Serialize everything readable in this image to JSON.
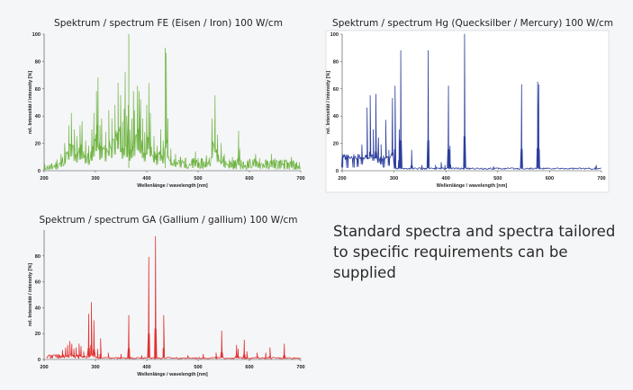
{
  "caption": "Standard spectra and spectra tailored to specific requirements can be supplied",
  "chart_data": [
    {
      "type": "line",
      "title": "Spektrum / spectrum FE (Eisen / Iron) 100 W/cm",
      "xlabel": "Wellenlänge / wavelength [nm]",
      "ylabel": "rel. Intensität / intensity [%]",
      "xlim": [
        200,
        700
      ],
      "ylim": [
        0,
        100
      ],
      "xticks": [
        "200",
        "300",
        "400",
        "500",
        "600",
        "700"
      ],
      "yticks": [
        "0",
        "20",
        "40",
        "60",
        "80",
        "100"
      ],
      "color": "#6db33f",
      "grid": false,
      "peaks": [
        {
          "x": 200,
          "y": 1
        },
        {
          "x": 215,
          "y": 5
        },
        {
          "x": 225,
          "y": 8
        },
        {
          "x": 233,
          "y": 12
        },
        {
          "x": 240,
          "y": 20
        },
        {
          "x": 248,
          "y": 33
        },
        {
          "x": 253,
          "y": 42
        },
        {
          "x": 259,
          "y": 30
        },
        {
          "x": 264,
          "y": 25
        },
        {
          "x": 270,
          "y": 33
        },
        {
          "x": 274,
          "y": 36
        },
        {
          "x": 281,
          "y": 22
        },
        {
          "x": 287,
          "y": 18
        },
        {
          "x": 293,
          "y": 30
        },
        {
          "x": 297,
          "y": 42
        },
        {
          "x": 302,
          "y": 58
        },
        {
          "x": 305,
          "y": 68
        },
        {
          "x": 309,
          "y": 33
        },
        {
          "x": 312,
          "y": 38
        },
        {
          "x": 320,
          "y": 28
        },
        {
          "x": 326,
          "y": 44
        },
        {
          "x": 332,
          "y": 38
        },
        {
          "x": 338,
          "y": 48
        },
        {
          "x": 344,
          "y": 64
        },
        {
          "x": 349,
          "y": 55
        },
        {
          "x": 353,
          "y": 36
        },
        {
          "x": 356,
          "y": 45
        },
        {
          "x": 358,
          "y": 72
        },
        {
          "x": 361,
          "y": 40
        },
        {
          "x": 364,
          "y": 48
        },
        {
          "x": 367,
          "y": 30
        },
        {
          "x": 371,
          "y": 38
        },
        {
          "x": 374,
          "y": 58
        },
        {
          "x": 376,
          "y": 44
        },
        {
          "x": 382,
          "y": 62
        },
        {
          "x": 385,
          "y": 58
        },
        {
          "x": 388,
          "y": 52
        },
        {
          "x": 392,
          "y": 38
        },
        {
          "x": 396,
          "y": 28
        },
        {
          "x": 400,
          "y": 48
        },
        {
          "x": 404,
          "y": 64
        },
        {
          "x": 407,
          "y": 42
        },
        {
          "x": 414,
          "y": 25
        },
        {
          "x": 420,
          "y": 18
        },
        {
          "x": 427,
          "y": 30
        },
        {
          "x": 432,
          "y": 22
        },
        {
          "x": 438,
          "y": 86
        },
        {
          "x": 441,
          "y": 38
        },
        {
          "x": 447,
          "y": 16
        },
        {
          "x": 456,
          "y": 12
        },
        {
          "x": 466,
          "y": 10
        },
        {
          "x": 475,
          "y": 9
        },
        {
          "x": 490,
          "y": 9
        },
        {
          "x": 495,
          "y": 14
        },
        {
          "x": 500,
          "y": 9
        },
        {
          "x": 508,
          "y": 8
        },
        {
          "x": 516,
          "y": 11
        },
        {
          "x": 527,
          "y": 38
        },
        {
          "x": 533,
          "y": 55
        },
        {
          "x": 538,
          "y": 26
        },
        {
          "x": 545,
          "y": 20
        },
        {
          "x": 551,
          "y": 12
        },
        {
          "x": 561,
          "y": 8
        },
        {
          "x": 567,
          "y": 10
        },
        {
          "x": 571,
          "y": 7
        },
        {
          "x": 579,
          "y": 29
        },
        {
          "x": 581,
          "y": 16
        },
        {
          "x": 588,
          "y": 6
        },
        {
          "x": 598,
          "y": 8
        },
        {
          "x": 612,
          "y": 12
        },
        {
          "x": 620,
          "y": 9
        },
        {
          "x": 634,
          "y": 7
        },
        {
          "x": 643,
          "y": 12
        },
        {
          "x": 650,
          "y": 9
        },
        {
          "x": 660,
          "y": 7
        },
        {
          "x": 668,
          "y": 8
        },
        {
          "x": 674,
          "y": 6
        },
        {
          "x": 682,
          "y": 10
        },
        {
          "x": 690,
          "y": 5
        },
        {
          "x": 697,
          "y": 6
        }
      ],
      "markers": [
        {
          "x": 365,
          "y": 100
        },
        {
          "x": 436,
          "y": 90
        }
      ]
    },
    {
      "type": "line",
      "title": "Spektrum / spectrum Hg (Quecksilber / Mercury) 100 W/cm",
      "xlabel": "Wellenlänge / wavelength [nm]",
      "ylabel": "rel. Intensität / intensity [%]",
      "xlim": [
        200,
        700
      ],
      "ylim": [
        0,
        100
      ],
      "xticks": [
        "200",
        "300",
        "400",
        "500",
        "600",
        "700"
      ],
      "yticks": [
        "0",
        "20",
        "40",
        "60",
        "80",
        "100"
      ],
      "color": "#2c3e9c",
      "grid": false,
      "peaks": [
        {
          "x": 200,
          "y": 10
        },
        {
          "x": 210,
          "y": 9
        },
        {
          "x": 222,
          "y": 10
        },
        {
          "x": 230,
          "y": 12
        },
        {
          "x": 238,
          "y": 19
        },
        {
          "x": 248,
          "y": 46
        },
        {
          "x": 254,
          "y": 55
        },
        {
          "x": 260,
          "y": 30
        },
        {
          "x": 265,
          "y": 56
        },
        {
          "x": 270,
          "y": 24
        },
        {
          "x": 275,
          "y": 19
        },
        {
          "x": 280,
          "y": 10
        },
        {
          "x": 284,
          "y": 37
        },
        {
          "x": 290,
          "y": 15
        },
        {
          "x": 297,
          "y": 53
        },
        {
          "x": 302,
          "y": 62
        },
        {
          "x": 310,
          "y": 30
        },
        {
          "x": 313,
          "y": 88
        },
        {
          "x": 334,
          "y": 15
        },
        {
          "x": 354,
          "y": 4
        },
        {
          "x": 366,
          "y": 88
        },
        {
          "x": 380,
          "y": 4
        },
        {
          "x": 391,
          "y": 6
        },
        {
          "x": 398,
          "y": 4
        },
        {
          "x": 405,
          "y": 62
        },
        {
          "x": 408,
          "y": 18
        },
        {
          "x": 436,
          "y": 100
        },
        {
          "x": 492,
          "y": 3
        },
        {
          "x": 546,
          "y": 63
        },
        {
          "x": 577,
          "y": 65
        },
        {
          "x": 579,
          "y": 63
        },
        {
          "x": 690,
          "y": 4
        }
      ]
    },
    {
      "type": "line",
      "title": "Spektrum / spectrum GA (Gallium / gallium) 100 W/cm",
      "xlabel": "Wellenlänge / wavelength [nm]",
      "ylabel": "rel. Intensität / intensity [%]",
      "xlim": [
        200,
        700
      ],
      "ylim": [
        0,
        100
      ],
      "xticks": [
        "200",
        "300",
        "400",
        "500",
        "600",
        "700"
      ],
      "yticks": [
        "0",
        "20",
        "40",
        "60",
        "80"
      ],
      "color": "#e23030",
      "grid": false,
      "peaks": [
        {
          "x": 215,
          "y": 2
        },
        {
          "x": 228,
          "y": 4
        },
        {
          "x": 236,
          "y": 7
        },
        {
          "x": 242,
          "y": 9
        },
        {
          "x": 246,
          "y": 11
        },
        {
          "x": 250,
          "y": 14
        },
        {
          "x": 254,
          "y": 12
        },
        {
          "x": 258,
          "y": 8
        },
        {
          "x": 262,
          "y": 9
        },
        {
          "x": 268,
          "y": 12
        },
        {
          "x": 272,
          "y": 10
        },
        {
          "x": 277,
          "y": 6
        },
        {
          "x": 287,
          "y": 35
        },
        {
          "x": 292,
          "y": 44
        },
        {
          "x": 297,
          "y": 30
        },
        {
          "x": 304,
          "y": 8
        },
        {
          "x": 310,
          "y": 16
        },
        {
          "x": 325,
          "y": 5
        },
        {
          "x": 350,
          "y": 4
        },
        {
          "x": 365,
          "y": 34
        },
        {
          "x": 390,
          "y": 3
        },
        {
          "x": 404,
          "y": 79
        },
        {
          "x": 417,
          "y": 95
        },
        {
          "x": 433,
          "y": 34
        },
        {
          "x": 480,
          "y": 3
        },
        {
          "x": 510,
          "y": 4
        },
        {
          "x": 535,
          "y": 5
        },
        {
          "x": 546,
          "y": 22
        },
        {
          "x": 575,
          "y": 11
        },
        {
          "x": 578,
          "y": 8
        },
        {
          "x": 590,
          "y": 15
        },
        {
          "x": 595,
          "y": 6
        },
        {
          "x": 615,
          "y": 5
        },
        {
          "x": 632,
          "y": 5
        },
        {
          "x": 640,
          "y": 9
        },
        {
          "x": 668,
          "y": 12
        }
      ]
    }
  ]
}
